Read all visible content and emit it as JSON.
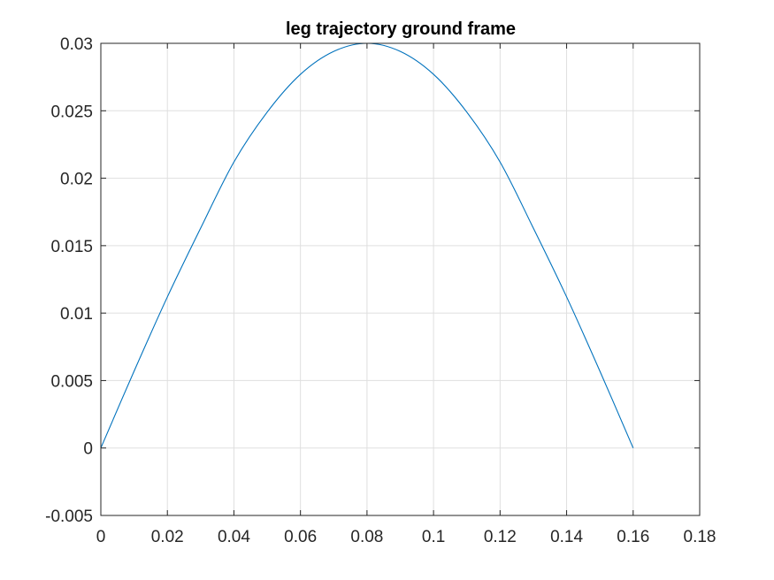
{
  "chart_data": {
    "type": "line",
    "title": "leg trajectory ground frame",
    "xlabel": "",
    "ylabel": "",
    "xlim": [
      0,
      0.18
    ],
    "ylim": [
      -0.005,
      0.03
    ],
    "grid": true,
    "x_ticks": [
      0,
      0.02,
      0.04,
      0.06,
      0.08,
      0.1,
      0.12,
      0.14,
      0.16,
      0.18
    ],
    "x_tick_labels": [
      "0",
      "0.02",
      "0.04",
      "0.06",
      "0.08",
      "0.1",
      "0.12",
      "0.14",
      "0.16",
      "0.18"
    ],
    "y_ticks": [
      -0.005,
      0,
      0.005,
      0.01,
      0.015,
      0.02,
      0.025,
      0.03
    ],
    "y_tick_labels": [
      "-0.005",
      "0",
      "0.005",
      "0.01",
      "0.015",
      "0.02",
      "0.025",
      "0.03"
    ],
    "series": [
      {
        "color": "#0072BD",
        "x": [
          0,
          0.01,
          0.02,
          0.03,
          0.04,
          0.05,
          0.06,
          0.07,
          0.08,
          0.09,
          0.1,
          0.11,
          0.12,
          0.13,
          0.14,
          0.15,
          0.16
        ],
        "y": [
          0,
          0.0057,
          0.0112,
          0.0163,
          0.0212,
          0.0249,
          0.0277,
          0.0294,
          0.03,
          0.0294,
          0.0277,
          0.0249,
          0.0212,
          0.0163,
          0.0112,
          0.0057,
          0
        ]
      }
    ]
  },
  "colors": {
    "axis": "#262626",
    "grid": "#dfdfdf",
    "line": "#0072BD"
  }
}
